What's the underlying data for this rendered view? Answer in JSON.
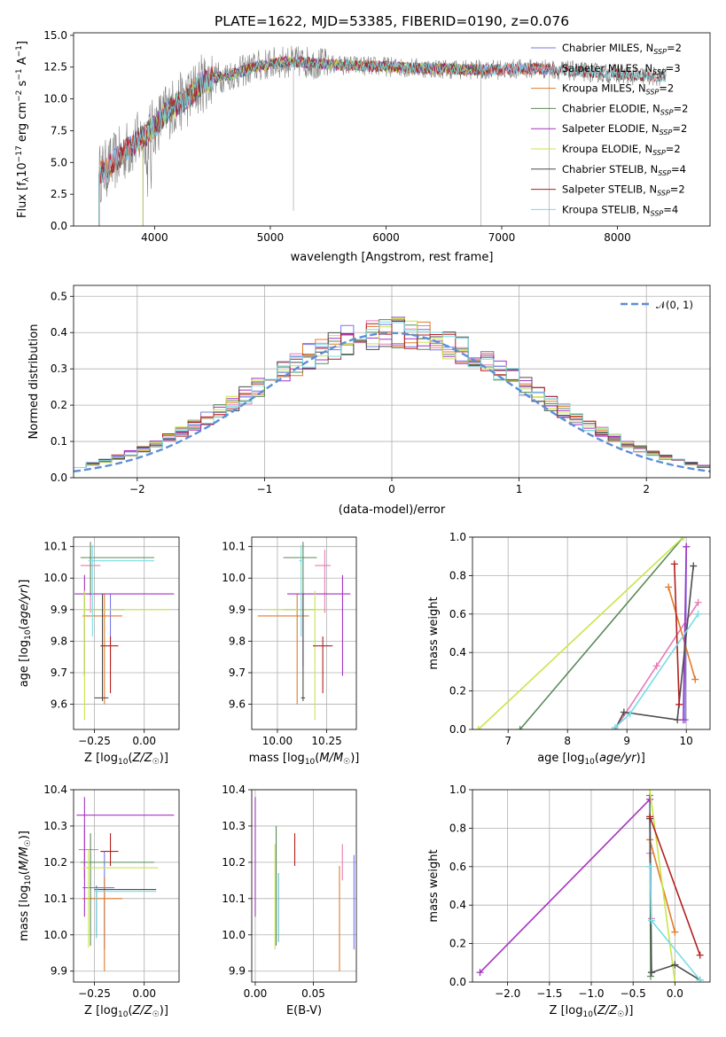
{
  "colors": {
    "chabrier_miles": "#7777ee",
    "salpeter_miles": "#e77bb6",
    "kroupa_miles": "#e07b2a",
    "chabrier_elodie": "#5a8a5a",
    "salpeter_elodie": "#a532c4",
    "kroupa_elodie": "#c8e64a",
    "chabrier_stelib": "#4d4d4d",
    "salpeter_stelib": "#b41e1e",
    "kroupa_stelib": "#78dce6",
    "data": "#808080",
    "normal_curve": "#5b8fd6"
  },
  "chart_data": [
    {
      "id": "spectrum",
      "type": "line",
      "title": "PLATE=1622, MJD=53385, FIBERID=0190, z=0.076",
      "xlabel": "wavelength [Angstrom, rest frame]",
      "ylabel": "Flux [f_λ 10^-17 erg cm^-2 s^-1 A^-1]",
      "xlim": [
        3300,
        8800
      ],
      "ylim": [
        0,
        15.2
      ],
      "xticks": [
        4000,
        5000,
        6000,
        7000,
        8000
      ],
      "yticks": [
        0.0,
        2.5,
        5.0,
        7.5,
        10.0,
        12.5,
        15.0
      ],
      "legend_position": "top-right",
      "legend": [
        {
          "label": "Chabrier MILES, N_SSP=2",
          "color_key": "chabrier_miles"
        },
        {
          "label": "Salpeter MILES, N_SSP=3",
          "color_key": "salpeter_miles"
        },
        {
          "label": "Kroupa MILES, N_SSP=2",
          "color_key": "kroupa_miles"
        },
        {
          "label": "Chabrier ELODIE, N_SSP=2",
          "color_key": "chabrier_elodie"
        },
        {
          "label": "Salpeter ELODIE, N_SSP=2",
          "color_key": "salpeter_elodie"
        },
        {
          "label": "Kroupa ELODIE, N_SSP=2",
          "color_key": "kroupa_elodie"
        },
        {
          "label": "Chabrier STELIB, N_SSP=4",
          "color_key": "chabrier_stelib"
        },
        {
          "label": "Salpeter STELIB, N_SSP=2",
          "color_key": "salpeter_stelib"
        },
        {
          "label": "Kroupa STELIB, N_SSP=4",
          "color_key": "kroupa_stelib"
        }
      ],
      "continuum": {
        "wavelength": [
          3500,
          3600,
          3700,
          3800,
          3900,
          4000,
          4100,
          4200,
          4300,
          4400,
          4500,
          4700,
          4900,
          5100,
          5300,
          5500,
          5800,
          6100,
          6400,
          6700,
          7000,
          7300,
          7600,
          7900,
          8200,
          8500
        ],
        "flux": [
          4.0,
          4.6,
          5.5,
          6.3,
          7.0,
          7.8,
          9.0,
          9.6,
          10.2,
          11.2,
          11.6,
          12.0,
          12.6,
          12.9,
          12.9,
          12.7,
          12.6,
          12.5,
          12.4,
          12.3,
          12.3,
          12.4,
          12.2,
          12.0,
          11.8,
          11.7
        ]
      }
    },
    {
      "id": "residuals",
      "type": "histogram",
      "xlabel": "(data-model)/error",
      "ylabel": "Normed distribution",
      "xlim": [
        -2.5,
        2.5
      ],
      "ylim": [
        0,
        0.53
      ],
      "xticks": [
        -2,
        -1,
        0,
        1,
        2
      ],
      "yticks": [
        0.0,
        0.1,
        0.2,
        0.3,
        0.4,
        0.5
      ],
      "legend_position": "top-right",
      "legend": [
        {
          "label": "𝒩(0, 1)",
          "color_key": "normal_curve",
          "style": "dashed"
        }
      ],
      "grid": true
    },
    {
      "id": "age_vs_Z",
      "type": "errorbar",
      "xlabel": "Z [log10(Z/Z☉)]",
      "ylabel": "age [log10(age/yr)]",
      "xlim": [
        -0.355,
        0.175
      ],
      "ylim": [
        9.52,
        10.13
      ],
      "xticks": [
        -0.25,
        0.0
      ],
      "yticks": [
        9.6,
        9.7,
        9.8,
        9.9,
        10.0,
        10.1
      ],
      "points": [
        {
          "c": "chabrier_miles",
          "x": -0.17,
          "xerr": [
            0.13,
            0.07
          ],
          "y": 9.9,
          "yerr": [
            0.18,
            0.05
          ]
        },
        {
          "c": "salpeter_miles",
          "x": -0.27,
          "xerr": [
            0.05,
            0.05
          ],
          "y": 10.04,
          "yerr": [
            0.15,
            0.05
          ]
        },
        {
          "c": "kroupa_miles",
          "x": -0.2,
          "xerr": [
            0.11,
            0.09
          ],
          "y": 9.88,
          "yerr": [
            0.28,
            0.07
          ]
        },
        {
          "c": "chabrier_elodie",
          "x": -0.27,
          "xerr": [
            0.05,
            0.32
          ],
          "y": 10.065,
          "yerr": [
            0.12,
            0.05
          ]
        },
        {
          "c": "salpeter_elodie",
          "x": -0.3,
          "xerr": [
            0.05,
            0.45
          ],
          "y": 9.95,
          "yerr": [
            0.26,
            0.06
          ]
        },
        {
          "c": "kroupa_elodie",
          "x": -0.3,
          "xerr": [
            0.01,
            0.43
          ],
          "y": 9.9,
          "yerr": [
            0.35,
            0.06
          ]
        },
        {
          "c": "chabrier_stelib",
          "x": -0.21,
          "xerr": [
            0.04,
            0.03
          ],
          "y": 9.62,
          "yerr": [
            0.01,
            0.33
          ]
        },
        {
          "c": "salpeter_stelib",
          "x": -0.17,
          "xerr": [
            0.05,
            0.04
          ],
          "y": 9.785,
          "yerr": [
            0.15,
            0.03
          ]
        },
        {
          "c": "kroupa_stelib",
          "x": -0.26,
          "xerr": [
            0.02,
            0.31
          ],
          "y": 10.055,
          "yerr": [
            0.24,
            0.05
          ]
        }
      ],
      "grid": true
    },
    {
      "id": "age_vs_mass",
      "type": "errorbar",
      "xlabel": "mass [log10(M/M☉)]",
      "ylabel": "",
      "xlim": [
        9.87,
        10.4
      ],
      "ylim": [
        9.52,
        10.13
      ],
      "xticks": [
        10.0,
        10.25
      ],
      "yticks": [
        9.6,
        9.7,
        9.8,
        9.9,
        10.0,
        10.1
      ],
      "points": [
        {
          "c": "chabrier_miles",
          "x": 10.13,
          "xerr": [
            0.1,
            0.06
          ],
          "y": 9.9,
          "yerr": [
            0.18,
            0.05
          ]
        },
        {
          "c": "salpeter_miles",
          "x": 10.24,
          "xerr": [
            0.05,
            0.03
          ],
          "y": 10.04,
          "yerr": [
            0.15,
            0.05
          ]
        },
        {
          "c": "kroupa_miles",
          "x": 10.1,
          "xerr": [
            0.2,
            0.06
          ],
          "y": 9.88,
          "yerr": [
            0.28,
            0.07
          ]
        },
        {
          "c": "chabrier_elodie",
          "x": 10.13,
          "xerr": [
            0.1,
            0.07
          ],
          "y": 10.065,
          "yerr": [
            0.12,
            0.05
          ]
        },
        {
          "c": "salpeter_elodie",
          "x": 10.33,
          "xerr": [
            0.28,
            0.04
          ],
          "y": 9.95,
          "yerr": [
            0.26,
            0.06
          ]
        },
        {
          "c": "kroupa_elodie",
          "x": 10.19,
          "xerr": [
            0.23,
            0.04
          ],
          "y": 9.9,
          "yerr": [
            0.35,
            0.06
          ]
        },
        {
          "c": "chabrier_stelib",
          "x": 10.13,
          "xerr": [
            0.01,
            0.01
          ],
          "y": 9.62,
          "yerr": [
            0.01,
            0.33
          ]
        },
        {
          "c": "salpeter_stelib",
          "x": 10.23,
          "xerr": [
            0.05,
            0.05
          ],
          "y": 9.785,
          "yerr": [
            0.15,
            0.03
          ]
        },
        {
          "c": "kroupa_stelib",
          "x": 10.12,
          "xerr": [
            0.01,
            0.01
          ],
          "y": 10.055,
          "yerr": [
            0.24,
            0.05
          ]
        }
      ],
      "grid": true
    },
    {
      "id": "mass_weight_vs_age",
      "type": "line",
      "xlabel": "age [log10(age/yr)]",
      "ylabel": "mass weight",
      "xlim": [
        6.4,
        10.4
      ],
      "ylim": [
        0,
        1.0
      ],
      "xticks": [
        7,
        8,
        9,
        10
      ],
      "yticks": [
        0.0,
        0.2,
        0.4,
        0.6,
        0.8,
        1.0
      ],
      "series": [
        {
          "c": "chabrier_miles",
          "x": [
            9.98,
            10.0
          ],
          "y": [
            0.05,
            0.95
          ]
        },
        {
          "c": "salpeter_miles",
          "x": [
            8.8,
            9.5,
            10.2
          ],
          "y": [
            0.0,
            0.33,
            0.66
          ]
        },
        {
          "c": "kroupa_miles",
          "x": [
            9.7,
            10.15
          ],
          "y": [
            0.74,
            0.26
          ]
        },
        {
          "c": "chabrier_elodie",
          "x": [
            7.2,
            9.95
          ],
          "y": [
            0.0,
            1.0
          ]
        },
        {
          "c": "salpeter_elodie",
          "x": [
            9.95,
            10.0
          ],
          "y": [
            0.05,
            0.95
          ]
        },
        {
          "c": "kroupa_elodie",
          "x": [
            6.5,
            9.95
          ],
          "y": [
            0.0,
            1.0
          ]
        },
        {
          "c": "chabrier_stelib",
          "x": [
            8.8,
            8.95,
            9.85,
            10.12
          ],
          "y": [
            0.0,
            0.09,
            0.05,
            0.85
          ]
        },
        {
          "c": "salpeter_stelib",
          "x": [
            9.8,
            9.88
          ],
          "y": [
            0.86,
            0.13
          ]
        },
        {
          "c": "kroupa_stelib",
          "x": [
            8.8,
            9.05,
            10.2
          ],
          "y": [
            0.01,
            0.08,
            0.6
          ]
        }
      ],
      "grid": true
    },
    {
      "id": "mass_vs_Z",
      "type": "errorbar",
      "xlabel": "Z [log10(Z/Z☉)]",
      "ylabel": "mass [log10(M/M☉)]",
      "xlim": [
        -0.355,
        0.175
      ],
      "ylim": [
        9.87,
        10.4
      ],
      "xticks": [
        -0.25,
        0.0
      ],
      "yticks": [
        9.9,
        10.0,
        10.1,
        10.2,
        10.3,
        10.4
      ],
      "points": [
        {
          "c": "chabrier_miles",
          "x": -0.2,
          "xerr": [
            0.11,
            0.05
          ],
          "y": 10.13,
          "yerr": [
            0.17,
            0.1
          ]
        },
        {
          "c": "salpeter_miles",
          "x": -0.3,
          "xerr": [
            0.03,
            0.07
          ],
          "y": 10.235,
          "yerr": [
            0.08,
            0.06
          ]
        },
        {
          "c": "kroupa_miles",
          "x": -0.2,
          "xerr": [
            0.11,
            0.09
          ],
          "y": 10.1,
          "yerr": [
            0.2,
            0.06
          ]
        },
        {
          "c": "chabrier_elodie",
          "x": -0.27,
          "xerr": [
            0.05,
            0.32
          ],
          "y": 10.2,
          "yerr": [
            0.23,
            0.08
          ]
        },
        {
          "c": "salpeter_elodie",
          "x": -0.3,
          "xerr": [
            0.04,
            0.45
          ],
          "y": 10.33,
          "yerr": [
            0.28,
            0.05
          ]
        },
        {
          "c": "kroupa_elodie",
          "x": -0.28,
          "xerr": [
            0.03,
            0.35
          ],
          "y": 10.185,
          "yerr": [
            0.22,
            0.05
          ]
        },
        {
          "c": "chabrier_stelib",
          "x": -0.24,
          "xerr": [
            0.01,
            0.3
          ],
          "y": 10.125,
          "yerr": [
            0.13,
            0.01
          ]
        },
        {
          "c": "salpeter_stelib",
          "x": -0.17,
          "xerr": [
            0.05,
            0.04
          ],
          "y": 10.23,
          "yerr": [
            0.04,
            0.05
          ]
        },
        {
          "c": "kroupa_stelib",
          "x": -0.24,
          "xerr": [
            0.01,
            0.3
          ],
          "y": 10.12,
          "yerr": [
            0.13,
            0.01
          ]
        }
      ],
      "grid": true
    },
    {
      "id": "mass_vs_EBV",
      "type": "errorbar",
      "xlabel": "E(B-V)",
      "ylabel": "",
      "xlim": [
        -0.003,
        0.087
      ],
      "ylim": [
        9.87,
        10.4
      ],
      "xticks": [
        0.0,
        0.05
      ],
      "yticks": [
        9.9,
        10.0,
        10.1,
        10.2,
        10.3,
        10.4
      ],
      "points": [
        {
          "c": "chabrier_miles",
          "x": 0.085,
          "y": 10.1,
          "yerr": [
            0.14,
            0.12
          ]
        },
        {
          "c": "salpeter_miles",
          "x": 0.075,
          "y": 10.2,
          "yerr": [
            0.05,
            0.05
          ]
        },
        {
          "c": "kroupa_miles",
          "x": 0.0725,
          "y": 10.1,
          "yerr": [
            0.2,
            0.09
          ]
        },
        {
          "c": "chabrier_elodie",
          "x": 0.018,
          "y": 10.2,
          "yerr": [
            0.23,
            0.1
          ]
        },
        {
          "c": "salpeter_elodie",
          "x": 0.0,
          "y": 10.21,
          "yerr": [
            0.16,
            0.17
          ]
        },
        {
          "c": "kroupa_elodie",
          "x": 0.017,
          "y": 10.17,
          "yerr": [
            0.21,
            0.08
          ]
        },
        {
          "c": "chabrier_stelib",
          "x": 0.02,
          "y": 10.07,
          "yerr": [
            0.09,
            0.1
          ]
        },
        {
          "c": "salpeter_stelib",
          "x": 0.034,
          "y": 10.23,
          "yerr": [
            0.04,
            0.05
          ]
        },
        {
          "c": "kroupa_stelib",
          "x": 0.02,
          "y": 10.07,
          "yerr": [
            0.09,
            0.1
          ]
        }
      ],
      "grid": true
    },
    {
      "id": "mass_weight_vs_Z",
      "type": "line",
      "xlabel": "Z [log10(Z/Z☉)]",
      "ylabel": "mass weight",
      "xlim": [
        -2.42,
        0.42
      ],
      "ylim": [
        0,
        1.0
      ],
      "xticks": [
        -2.0,
        -1.5,
        -1.0,
        -0.5,
        0.0
      ],
      "yticks": [
        0.0,
        0.2,
        0.4,
        0.6,
        0.8,
        1.0
      ],
      "series": [
        {
          "c": "chabrier_miles",
          "x": [
            -0.3,
            -0.28
          ],
          "y": [
            0.95,
            0.05
          ]
        },
        {
          "c": "salpeter_miles",
          "x": [
            -0.3,
            -0.28
          ],
          "y": [
            0.67,
            0.33
          ]
        },
        {
          "c": "kroupa_miles",
          "x": [
            -0.3,
            0.0
          ],
          "y": [
            0.74,
            0.26
          ]
        },
        {
          "c": "chabrier_elodie",
          "x": [
            -0.3,
            -0.29
          ],
          "y": [
            0.97,
            0.03
          ]
        },
        {
          "c": "salpeter_elodie",
          "x": [
            -2.33,
            -0.3
          ],
          "y": [
            0.05,
            0.95
          ]
        },
        {
          "c": "kroupa_elodie",
          "x": [
            -0.3,
            0.0
          ],
          "y": [
            1.0,
            0.0
          ]
        },
        {
          "c": "chabrier_stelib",
          "x": [
            -0.3,
            -0.28,
            0.0,
            0.3
          ],
          "y": [
            0.85,
            0.05,
            0.09,
            0.01
          ]
        },
        {
          "c": "salpeter_stelib",
          "x": [
            -0.3,
            0.3
          ],
          "y": [
            0.86,
            0.14
          ]
        },
        {
          "c": "kroupa_stelib",
          "x": [
            -0.3,
            -0.28,
            0.3
          ],
          "y": [
            0.6,
            0.32,
            0.01
          ]
        }
      ],
      "grid": true
    }
  ],
  "tick_labels": {
    "spectrum_x": [
      "4000",
      "5000",
      "6000",
      "7000",
      "8000"
    ],
    "spectrum_y": [
      "0.0",
      "2.5",
      "5.0",
      "7.5",
      "10.0",
      "12.5",
      "15.0"
    ],
    "resid_x": [
      "−2",
      "−1",
      "0",
      "1",
      "2"
    ],
    "resid_y": [
      "0.0",
      "0.1",
      "0.2",
      "0.3",
      "0.4",
      "0.5"
    ],
    "z_x": [
      "−0.25",
      "0.00"
    ],
    "age_y": [
      "9.6",
      "9.7",
      "9.8",
      "9.9",
      "10.0",
      "10.1"
    ],
    "mass_x": [
      "10.00",
      "10.25"
    ],
    "mw_age_x": [
      "7",
      "8",
      "9",
      "10"
    ],
    "mw_y": [
      "0.0",
      "0.2",
      "0.4",
      "0.6",
      "0.8",
      "1.0"
    ],
    "mass_y": [
      "9.9",
      "10.0",
      "10.1",
      "10.2",
      "10.3",
      "10.4"
    ],
    "ebv_x": [
      "0.00",
      "0.05"
    ],
    "mw_z_x": [
      "−2.0",
      "−1.5",
      "−1.0",
      "−0.5",
      "0.0"
    ]
  }
}
